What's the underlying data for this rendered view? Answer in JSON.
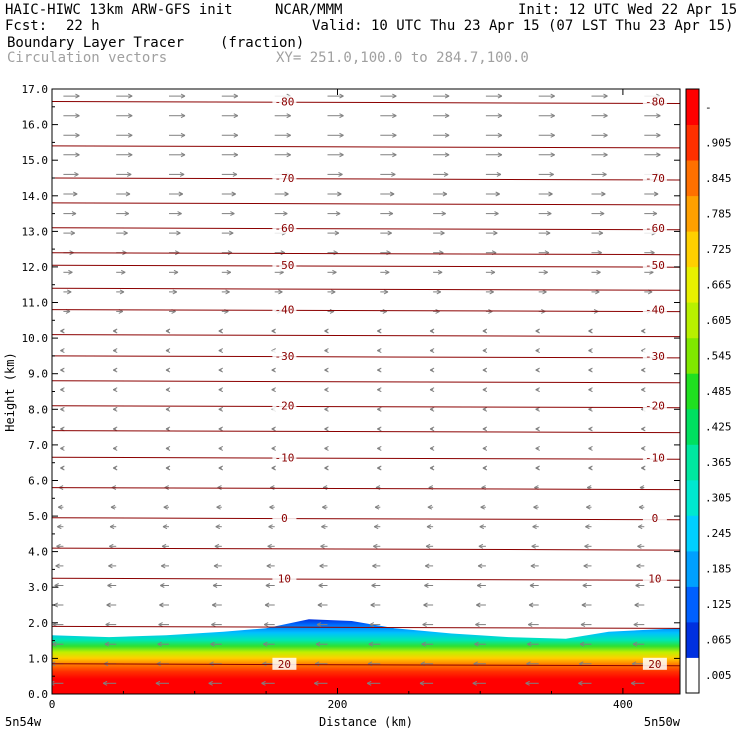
{
  "header": {
    "model": "HAIC-HIWC 13km ARW-GFS init",
    "org": "NCAR/MMM",
    "init": "Init: 12 UTC Wed 22 Apr 15",
    "fcst_label": "Fcst:",
    "fcst_value": "22 h",
    "valid": "Valid: 10 UTC Thu 23 Apr 15 (07 LST Thu 23 Apr 15)",
    "field_name": "Boundary Layer Tracer",
    "field_units": "(fraction)",
    "vector_name": "Circulation vectors",
    "xy_range": "XY= 251.0,100.0 to 284.7,100.0"
  },
  "chart_data": {
    "type": "heatmap",
    "xlabel": "Distance (km)",
    "ylabel": "Height (km)",
    "xlim": [
      0,
      440
    ],
    "ylim": [
      0,
      17
    ],
    "x_ticks": [
      "0",
      "200",
      "400"
    ],
    "x_tick_values": [
      0,
      200,
      400
    ],
    "x_end_labels": [
      "5n54w",
      "5n50w"
    ],
    "y_ticks": [
      "0.0",
      "1.0",
      "2.0",
      "3.0",
      "4.0",
      "5.0",
      "6.0",
      "7.0",
      "8.0",
      "9.0",
      "10.0",
      "11.0",
      "12.0",
      "13.0",
      "14.0",
      "15.0",
      "16.0",
      "17.0"
    ],
    "colorbar": {
      "labels": [
        ".005",
        ".065",
        ".125",
        ".185",
        ".245",
        ".305",
        ".365",
        ".425",
        ".485",
        ".545",
        ".605",
        ".665",
        ".725",
        ".785",
        ".845",
        ".905",
        "-"
      ],
      "colors": [
        "#ffffff",
        "#0030e0",
        "#0060ff",
        "#00a0ff",
        "#00d0ff",
        "#00e8d0",
        "#00e8a0",
        "#00e060",
        "#20e020",
        "#80e800",
        "#b8f000",
        "#e8f000",
        "#ffd000",
        "#ffa000",
        "#ff7000",
        "#ff3000",
        "#ff0000"
      ]
    },
    "temperature_contours": [
      {
        "label": "-80",
        "height_km": 16.65
      },
      {
        "label": "-70",
        "height_km": 14.5
      },
      {
        "label": "-60",
        "height_km": 13.1
      },
      {
        "label": "-50",
        "height_km": 12.05
      },
      {
        "label": "-40",
        "height_km": 10.8
      },
      {
        "label": "-30",
        "height_km": 9.5
      },
      {
        "label": "-20",
        "height_km": 8.1
      },
      {
        "label": "-10",
        "height_km": 6.65
      },
      {
        "label": "0",
        "height_km": 4.95
      },
      {
        "label": "10",
        "height_km": 3.25
      },
      {
        "label": "20",
        "height_km": 0.85
      }
    ],
    "unlabeled_contour_heights_km": [
      15.4,
      13.8,
      12.4,
      11.4,
      10.1,
      8.8,
      7.4,
      5.8,
      4.1,
      1.9
    ],
    "boundary_layer_top_km": [
      [
        0,
        1.65
      ],
      [
        40,
        1.6
      ],
      [
        80,
        1.65
      ],
      [
        120,
        1.75
      ],
      [
        150,
        1.85
      ],
      [
        180,
        2.1
      ],
      [
        210,
        2.05
      ],
      [
        240,
        1.85
      ],
      [
        280,
        1.7
      ],
      [
        320,
        1.6
      ],
      [
        360,
        1.55
      ],
      [
        390,
        1.75
      ],
      [
        440,
        1.85
      ]
    ],
    "vectors": {
      "upper_direction": "east",
      "lower_direction": "west",
      "reversal_height_km": 10.5
    }
  }
}
